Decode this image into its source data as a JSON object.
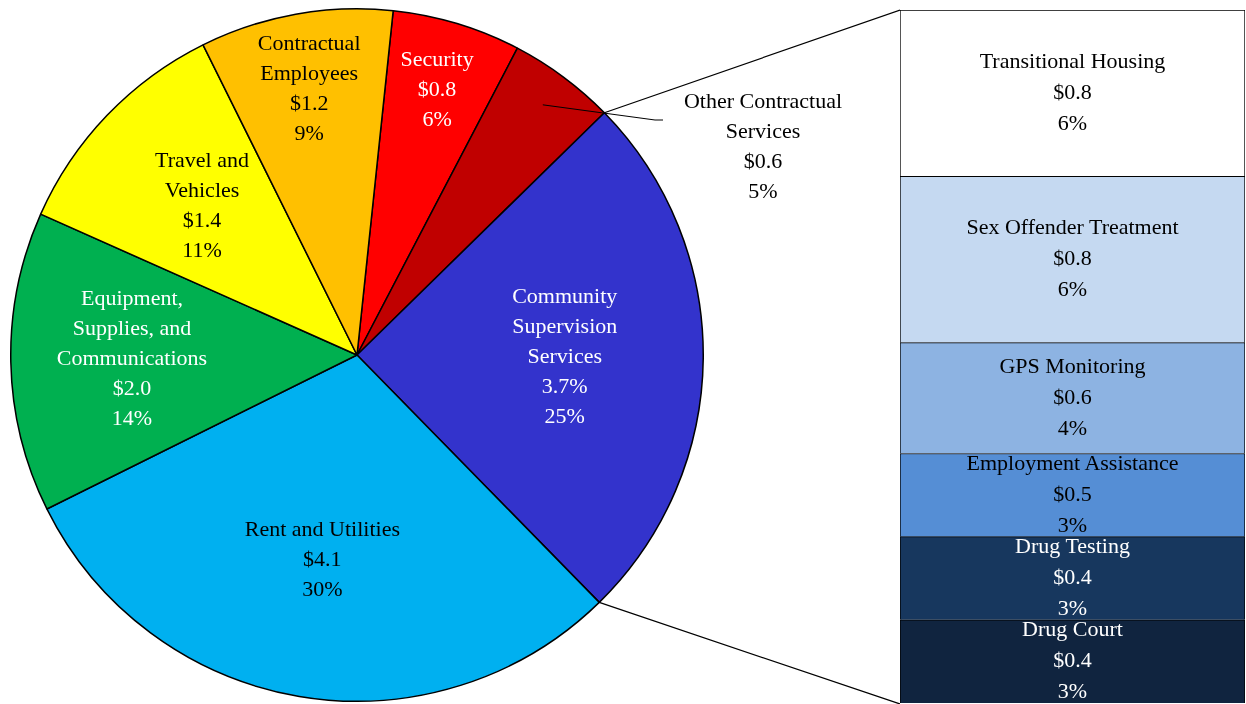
{
  "chart_data": [
    {
      "type": "pie",
      "categories": [
        "Security",
        "Other Contractual Services",
        "Community Supervision Services",
        "Rent and Utilities",
        "Equipment, Supplies, and Communications",
        "Travel and Vehicles",
        "Contractual Employees"
      ],
      "values": [
        6,
        5,
        25,
        30,
        14,
        11,
        9
      ],
      "colors": [
        "#ff0000",
        "#c00000",
        "#3333cc",
        "#00b0f0",
        "#00b050",
        "#ffff00",
        "#ffc000"
      ],
      "value_labels": [
        "$0.8\n6%",
        "$0.6\n5%",
        "3.7%\n25%",
        "$4.1\n30%",
        "$2.0\n14%",
        "$1.4\n11%",
        "$1.2\n9%"
      ],
      "legend": false
    },
    {
      "type": "bar",
      "stacked": true,
      "categories": [
        null
      ],
      "legend": false,
      "series": [
        {
          "name": "Drug Court",
          "color": "#10243f",
          "values": [
            3
          ],
          "value_labels": [
            "$0.4\n3%"
          ]
        },
        {
          "name": "Drug Testing",
          "color": "#17375e",
          "values": [
            3
          ],
          "value_labels": [
            "$0.4\n3%"
          ]
        },
        {
          "name": "Employment Assistance",
          "color": "#558ed5",
          "values": [
            3
          ],
          "value_labels": [
            "$0.5\n3%"
          ]
        },
        {
          "name": "GPS Monitoring",
          "color": "#8db3e2",
          "values": [
            4
          ],
          "value_labels": [
            "$0.6\n4%"
          ]
        },
        {
          "name": "Sex Offender Treatment",
          "color": "#c5d9f1",
          "values": [
            6
          ],
          "value_labels": [
            "$0.8\n6%"
          ]
        },
        {
          "name": "Transitional Housing",
          "color": "#ffffff",
          "values": [
            6
          ],
          "value_labels": [
            "$0.8\n6%"
          ]
        }
      ]
    }
  ]
}
